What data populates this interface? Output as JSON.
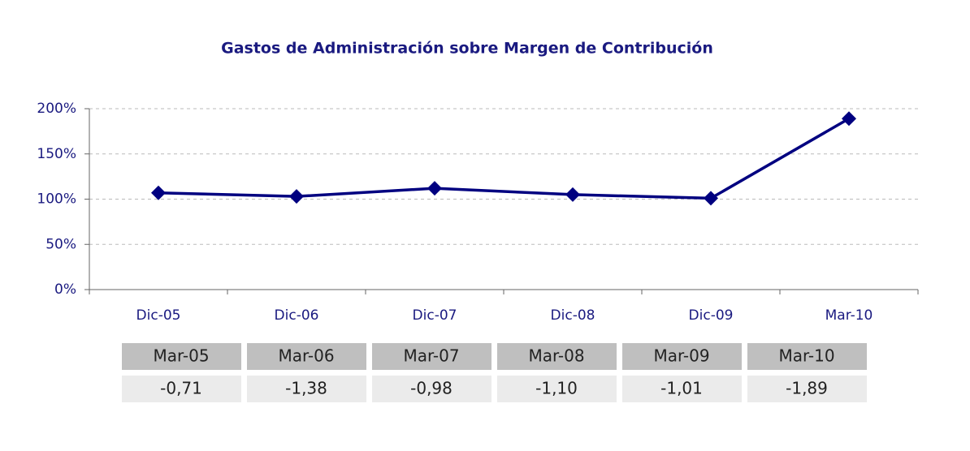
{
  "chart_data": {
    "type": "line",
    "title": "Gastos de Administración sobre Margen de Contribución",
    "categories": [
      "Dic-05",
      "Dic-06",
      "Dic-07",
      "Dic-08",
      "Dic-09",
      "Mar-10"
    ],
    "series": [
      {
        "color": "#000080",
        "values": [
          107,
          103,
          112,
          105,
          101,
          189
        ]
      }
    ],
    "ylim": [
      0,
      200
    ],
    "yticks": [
      {
        "value": 0,
        "label": "0%"
      },
      {
        "value": 50,
        "label": "50%"
      },
      {
        "value": 100,
        "label": "100%"
      },
      {
        "value": 150,
        "label": "150%"
      },
      {
        "value": 200,
        "label": "200%"
      }
    ],
    "grid": true
  },
  "table": {
    "headers": [
      "Mar-05",
      "Mar-06",
      "Mar-07",
      "Mar-08",
      "Mar-09",
      "Mar-10"
    ],
    "values": [
      "-0,71",
      "-1,38",
      "-0,98",
      "-1,10",
      "-1,01",
      "-1,89"
    ]
  }
}
